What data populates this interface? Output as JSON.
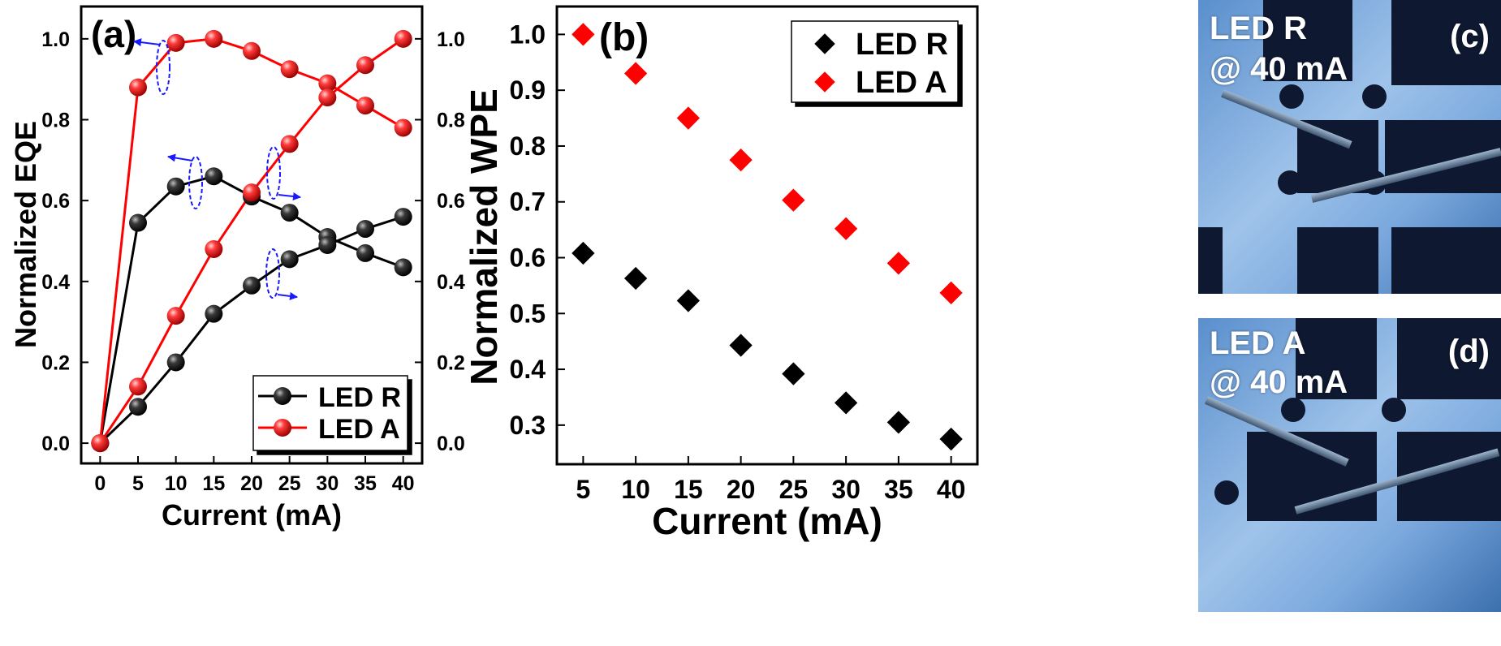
{
  "chart_data": [
    {
      "panel": "a",
      "type": "line",
      "panel_label": "(a)",
      "xlabel": "Current (mA)",
      "ylabel_left": "Normalized EQE",
      "ylabel_right": "Normalized WPE",
      "x": [
        0,
        5,
        10,
        15,
        20,
        25,
        30,
        35,
        40
      ],
      "xlim": [
        -2.5,
        42.5
      ],
      "ylim": [
        -0.05,
        1.08
      ],
      "x_ticks": [
        "0",
        "5",
        "10",
        "15",
        "20",
        "25",
        "30",
        "35",
        "40"
      ],
      "y_ticks_left": [
        "0.0",
        "0.2",
        "0.4",
        "0.6",
        "0.8",
        "1.0"
      ],
      "y_ticks_right": [
        "0.0",
        "0.2",
        "0.4",
        "0.6",
        "0.8",
        "1.0"
      ],
      "grid": false,
      "legend_position": "bottom-right",
      "series": [
        {
          "name": "LED R",
          "axis": "left",
          "color": "#000000",
          "values": [
            0.0,
            0.545,
            0.635,
            0.66,
            0.61,
            0.57,
            0.51,
            0.47,
            0.435
          ]
        },
        {
          "name": "LED A",
          "axis": "left",
          "color": "#ff0000",
          "values": [
            0.0,
            0.88,
            0.99,
            1.0,
            0.97,
            0.925,
            0.89,
            0.835,
            0.78
          ]
        },
        {
          "name": "LED R",
          "axis": "right",
          "color": "#000000",
          "values": [
            0.0,
            0.09,
            0.2,
            0.32,
            0.39,
            0.455,
            0.49,
            0.53,
            0.56
          ]
        },
        {
          "name": "LED A",
          "axis": "right",
          "color": "#ff0000",
          "values": [
            0.0,
            0.14,
            0.315,
            0.48,
            0.62,
            0.74,
            0.855,
            0.935,
            1.0
          ]
        }
      ],
      "legend": [
        "LED R",
        "LED A"
      ]
    },
    {
      "panel": "b",
      "type": "scatter",
      "panel_label": "(b)",
      "xlabel": "Current (mA)",
      "ylabel": "Normalized WPE",
      "x": [
        5,
        10,
        15,
        20,
        25,
        30,
        35,
        40
      ],
      "xlim": [
        2.5,
        42.5
      ],
      "ylim": [
        0.23,
        1.05
      ],
      "x_ticks": [
        "5",
        "10",
        "15",
        "20",
        "25",
        "30",
        "35",
        "40"
      ],
      "y_ticks": [
        "0.3",
        "0.4",
        "0.5",
        "0.6",
        "0.7",
        "0.8",
        "0.9",
        "1.0"
      ],
      "grid": false,
      "legend_position": "top-right",
      "series": [
        {
          "name": "LED R",
          "color": "#000000",
          "values": [
            0.608,
            0.563,
            0.523,
            0.443,
            0.392,
            0.34,
            0.305,
            0.275
          ]
        },
        {
          "name": "LED A",
          "color": "#ff0000",
          "values": [
            1.0,
            0.93,
            0.85,
            0.775,
            0.703,
            0.652,
            0.59,
            0.537
          ]
        }
      ],
      "legend": [
        "LED R",
        "LED A"
      ]
    }
  ],
  "photos": [
    {
      "label_line1": "LED R",
      "label_line2": "@ 40 mA",
      "panel_label": "(c)"
    },
    {
      "label_line1": "LED A",
      "label_line2": "@ 40 mA",
      "panel_label": "(d)"
    }
  ],
  "colors": {
    "red": "#ff0000",
    "black": "#000000",
    "arrow_blue": "#1a1aff"
  }
}
